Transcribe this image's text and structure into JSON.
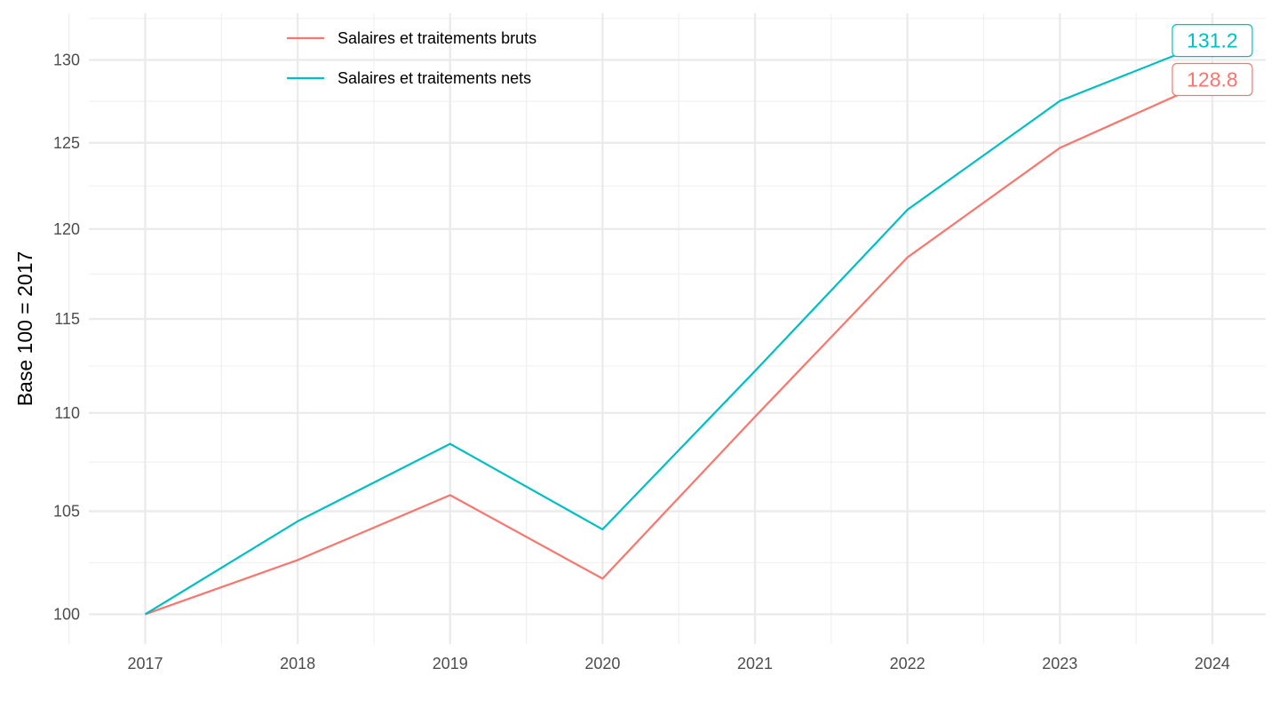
{
  "chart_data": {
    "type": "line",
    "title": "",
    "xlabel": "",
    "ylabel": "Base 100 = 2017",
    "yscale": "log",
    "x": [
      2017,
      2018,
      2019,
      2020,
      2021,
      2022,
      2023,
      2024
    ],
    "x_ticks": [
      "2017",
      "2018",
      "2019",
      "2020",
      "2021",
      "2022",
      "2023",
      "2024"
    ],
    "y_ticks": [
      "100",
      "105",
      "110",
      "115",
      "120",
      "125",
      "130"
    ],
    "ylim": [
      98.6,
      132.9
    ],
    "xlim": [
      2016.63,
      2024.35
    ],
    "grid": true,
    "legend_position": "top-left",
    "series": [
      {
        "name": "Salaires et traitements bruts",
        "color": "#F8766D",
        "values": [
          100,
          102.6,
          105.8,
          101.7,
          109.8,
          118.4,
          124.7,
          128.8
        ],
        "end_label": "128.8"
      },
      {
        "name": "Salaires et traitements nets",
        "color": "#00BFC4",
        "values": [
          100,
          104.5,
          108.4,
          104.1,
          112.2,
          121.1,
          127.5,
          131.2
        ],
        "end_label": "131.2"
      }
    ]
  }
}
